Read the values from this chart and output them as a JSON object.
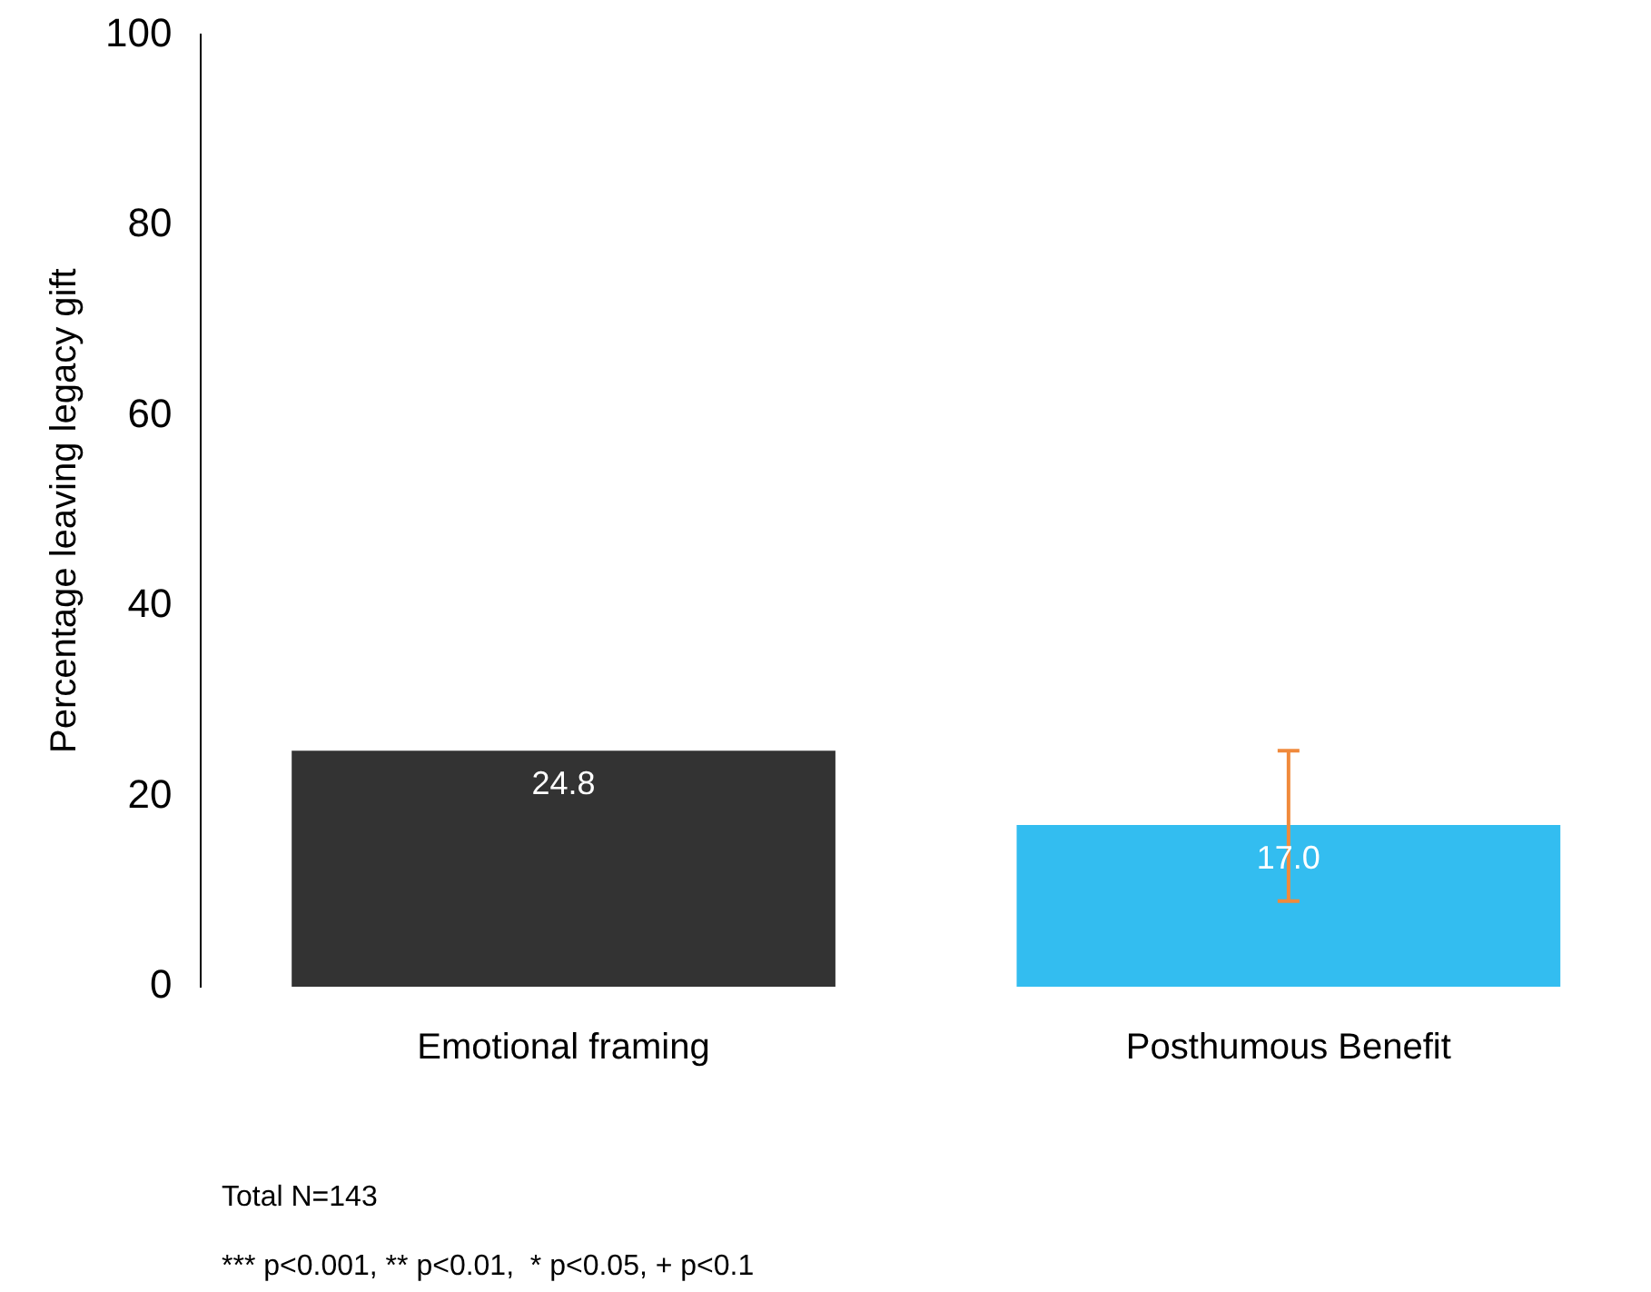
{
  "chart_data": {
    "type": "bar",
    "ylabel": "Percentage leaving legacy gift",
    "categories": [
      "Emotional framing",
      "Posthumous Benefit"
    ],
    "values": [
      24.8,
      17.0
    ],
    "colors": [
      "#333333",
      "#33bdf0"
    ],
    "errors": [
      null,
      [
        9.0,
        24.8
      ]
    ],
    "value_labels": [
      "24.8",
      "17.0"
    ],
    "ylim": [
      0,
      100
    ],
    "yticks": [
      0,
      20,
      40,
      60,
      80,
      100
    ],
    "grid": false,
    "annotations": [
      "Total N=143",
      "*** p<0.001, ** p<0.01,  * p<0.05, + p<0.1"
    ]
  }
}
